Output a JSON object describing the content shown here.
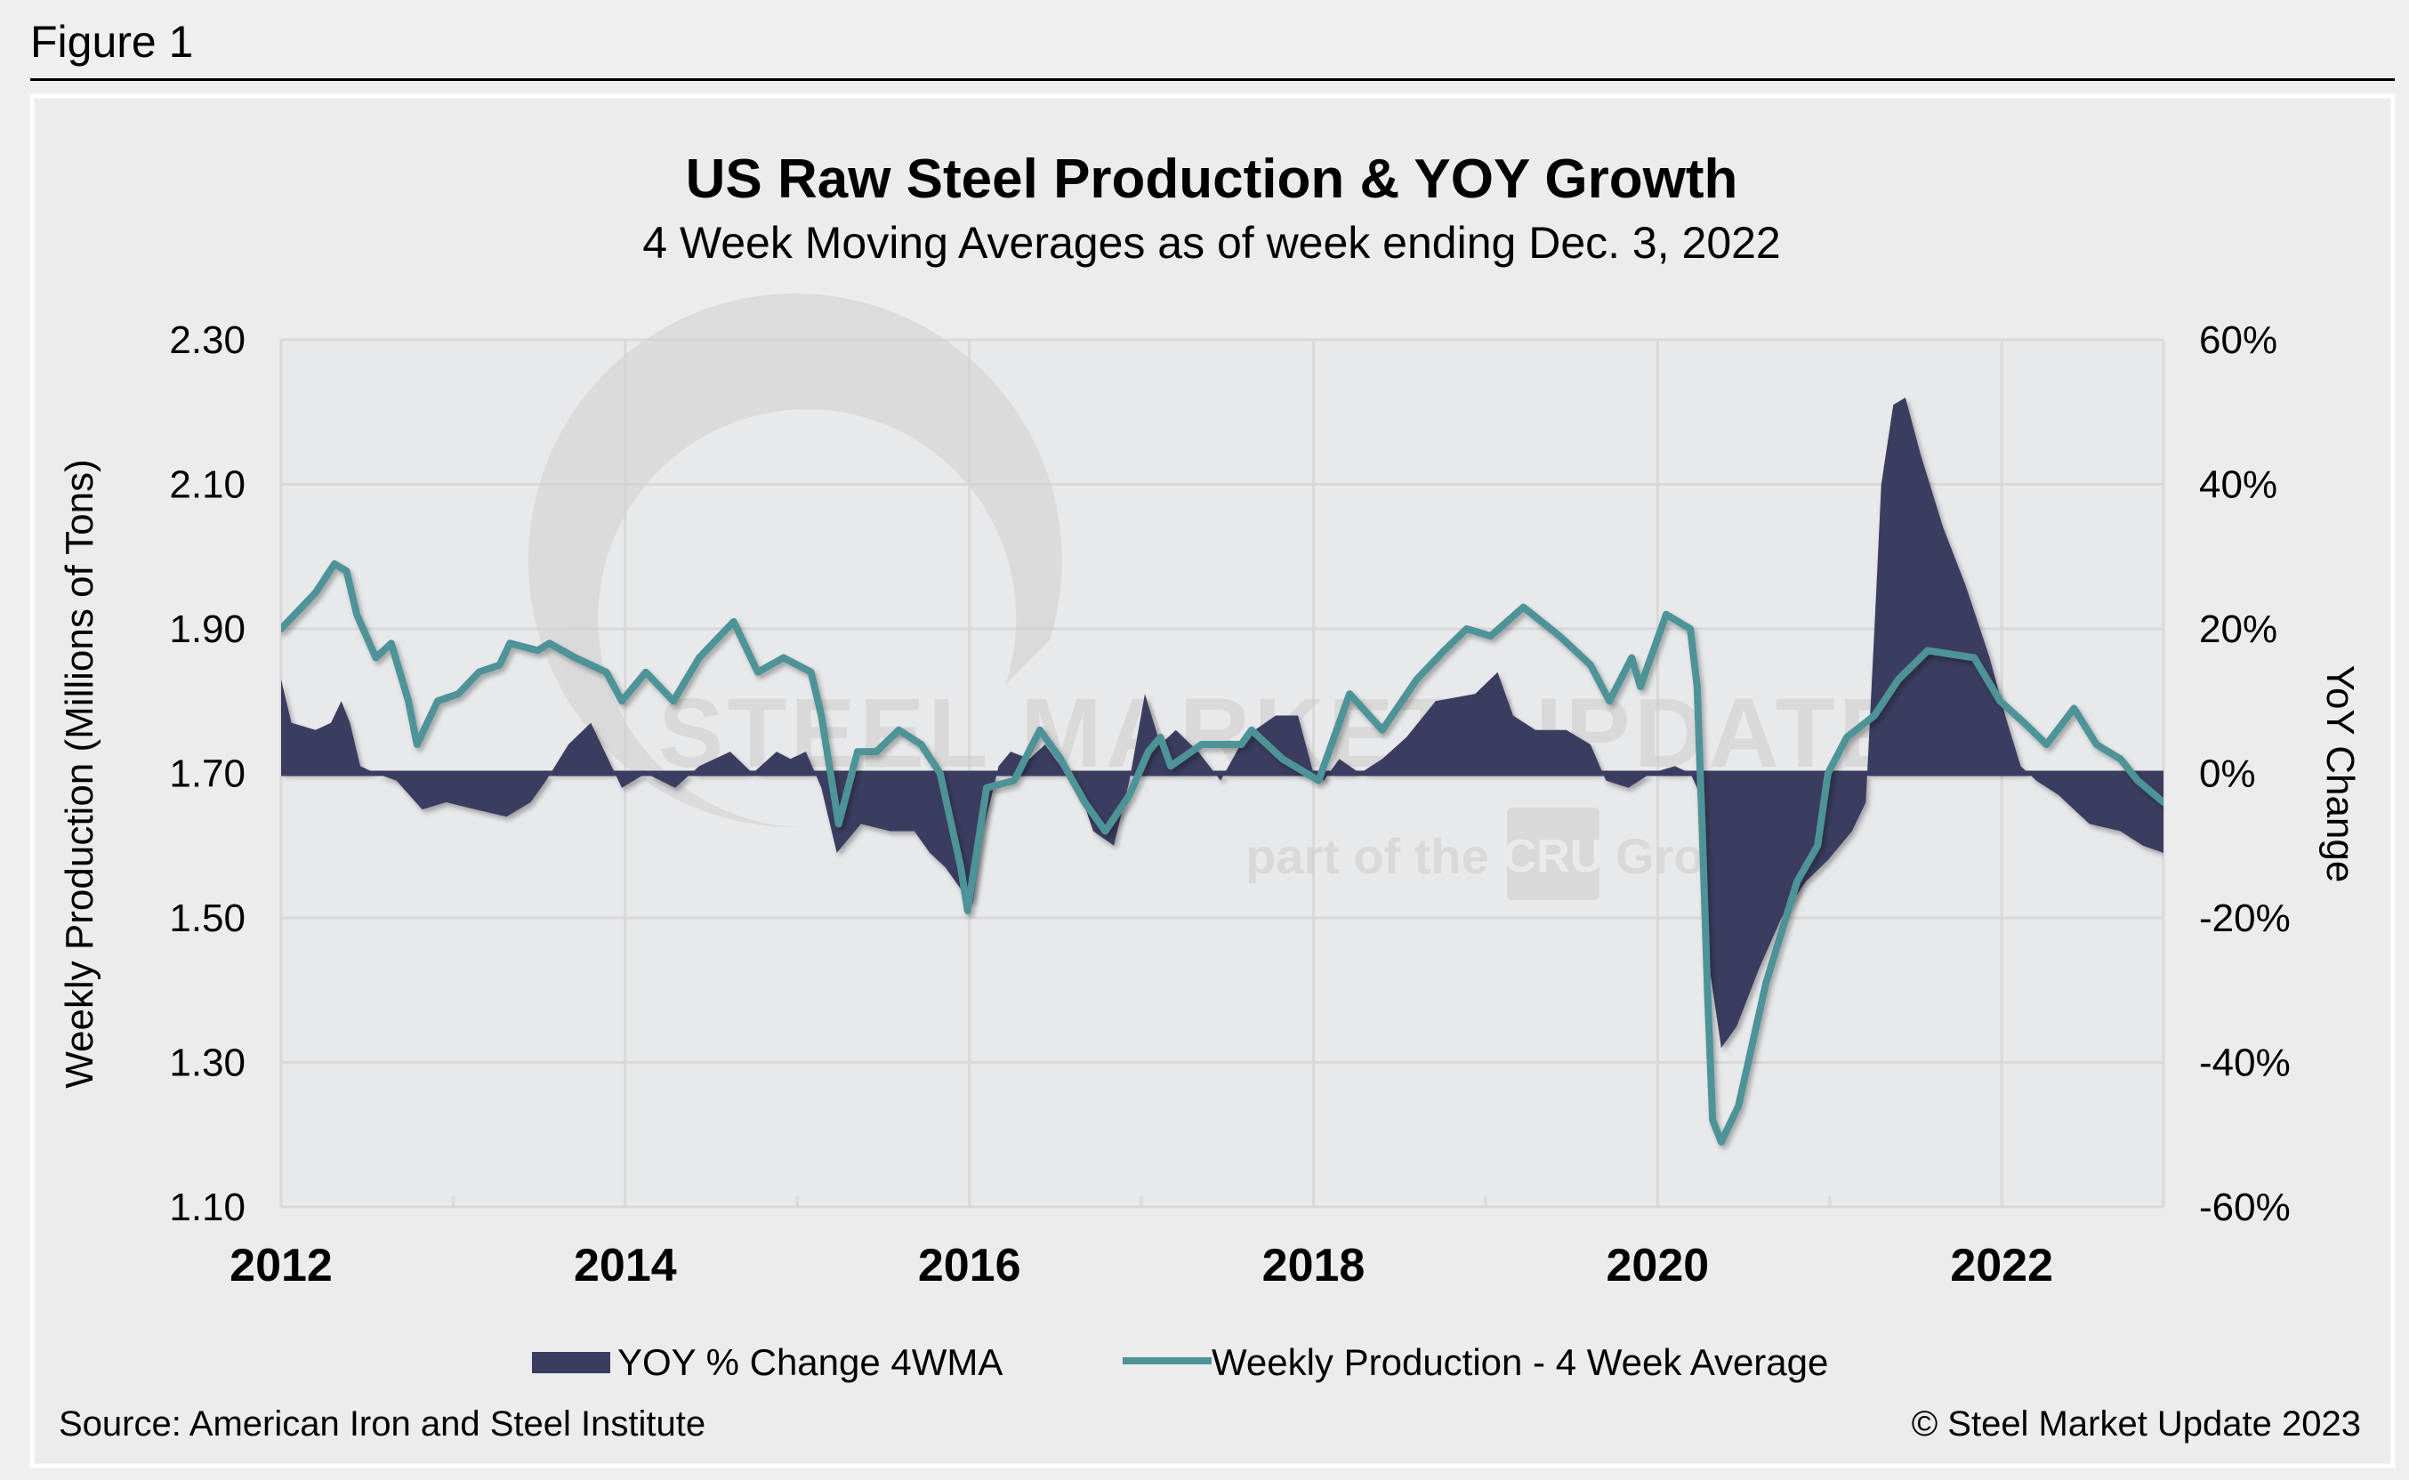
{
  "figure_label": "Figure 1",
  "source": "Source: American Iron and Steel Institute",
  "copyright": "© Steel Market Update 2023",
  "watermark": {
    "brand": "STEEL MARKET UPDATE",
    "tagline_pre": "part of the",
    "tagline_logo": "CRU",
    "tagline_post": "Group"
  },
  "colors": {
    "area": "#3b3d60",
    "line": "#4e9398",
    "grid": "#d9d9d9",
    "plot_bg": "#e8e9eb",
    "panel_bg": "#ececec"
  },
  "chart_data": {
    "type": "area+line",
    "title": "US Raw Steel Production & YOY Growth",
    "subtitle": "4 Week Moving Averages as of week ending Dec. 3, 2022",
    "ylabel_left": "Weekly Production (Millions of Tons)",
    "ylabel_right": "YoY Change",
    "xlim": [
      2012,
      2022.94
    ],
    "ylim_left": [
      1.1,
      2.3
    ],
    "ylim_right": [
      -60,
      60
    ],
    "grid": true,
    "legend_position": "bottom",
    "xticks": [
      2012,
      2014,
      2016,
      2018,
      2020,
      2022
    ],
    "xtick_labels": [
      "2012",
      "2014",
      "2016",
      "2018",
      "2020",
      "2022"
    ],
    "yticks_left": [
      2.3,
      2.1,
      1.9,
      1.7,
      1.5,
      1.3,
      1.1
    ],
    "ytick_labels_left": [
      "2.30",
      "2.10",
      "1.90",
      "1.70",
      "1.50",
      "1.30",
      "1.10"
    ],
    "yticks_right": [
      60,
      40,
      20,
      0,
      -20,
      -40,
      -60
    ],
    "ytick_labels_right": [
      "60%",
      "40%",
      "20%",
      "0%",
      "-20%",
      "-40%",
      "-60%"
    ],
    "series": [
      {
        "name": "YOY % Change 4WMA",
        "type": "area",
        "axis": "right",
        "x": [
          2012.0,
          2012.06,
          2012.2,
          2012.29,
          2012.35,
          2012.4,
          2012.46,
          2012.55,
          2012.67,
          2012.82,
          2012.96,
          2013.13,
          2013.31,
          2013.45,
          2013.54,
          2013.67,
          2013.8,
          2013.92,
          2013.98,
          2014.12,
          2014.29,
          2014.43,
          2014.61,
          2014.74,
          2014.88,
          2014.96,
          2015.05,
          2015.14,
          2015.23,
          2015.37,
          2015.54,
          2015.68,
          2015.77,
          2015.86,
          2015.95,
          2016.02,
          2016.08,
          2016.17,
          2016.24,
          2016.35,
          2016.44,
          2016.53,
          2016.62,
          2016.72,
          2016.84,
          2016.93,
          2017.02,
          2017.11,
          2017.2,
          2017.33,
          2017.46,
          2017.6,
          2017.78,
          2017.91,
          2018.0,
          2018.06,
          2018.15,
          2018.27,
          2018.4,
          2018.54,
          2018.71,
          2018.94,
          2019.07,
          2019.16,
          2019.29,
          2019.47,
          2019.61,
          2019.7,
          2019.83,
          2019.96,
          2020.1,
          2020.19,
          2020.23,
          2020.29,
          2020.37,
          2020.46,
          2020.59,
          2020.72,
          2020.86,
          2020.99,
          2021.13,
          2021.21,
          2021.26,
          2021.3,
          2021.37,
          2021.44,
          2021.53,
          2021.66,
          2021.79,
          2021.93,
          2022.02,
          2022.11,
          2022.2,
          2022.33,
          2022.51,
          2022.69,
          2022.82,
          2022.94
        ],
        "values": [
          13,
          7,
          6,
          7,
          10,
          7,
          1,
          0,
          -1,
          -5,
          -4,
          -5,
          -6,
          -4,
          -1,
          4,
          7,
          1,
          -2,
          0,
          -2,
          1,
          3,
          0,
          3,
          2,
          3,
          -2,
          -11,
          -7,
          -8,
          -8,
          -11,
          -13,
          -16,
          -18,
          -8,
          1,
          3,
          2,
          4,
          1,
          -1,
          -8,
          -10,
          -1,
          11,
          4,
          6,
          3,
          -1,
          5,
          8,
          8,
          0,
          -1,
          2,
          0,
          2,
          5,
          10,
          11,
          14,
          8,
          6,
          6,
          4,
          -1,
          -2,
          0,
          1,
          0,
          -2,
          -25,
          -38,
          -35,
          -27,
          -20,
          -15,
          -12,
          -8,
          -4,
          20,
          40,
          51,
          52,
          44,
          34,
          26,
          16,
          8,
          1,
          -1,
          -3,
          -7,
          -8,
          -10,
          -11
        ]
      },
      {
        "name": "Weekly Production - 4 Week Average",
        "type": "line",
        "axis": "left",
        "x": [
          2012.0,
          2012.2,
          2012.31,
          2012.38,
          2012.44,
          2012.55,
          2012.64,
          2012.74,
          2012.79,
          2012.91,
          2013.03,
          2013.15,
          2013.27,
          2013.33,
          2013.49,
          2013.56,
          2013.71,
          2013.89,
          2013.98,
          2014.12,
          2014.28,
          2014.43,
          2014.63,
          2014.77,
          2014.92,
          2015.08,
          2015.14,
          2015.24,
          2015.35,
          2015.46,
          2015.59,
          2015.72,
          2015.83,
          2015.95,
          2015.99,
          2016.1,
          2016.26,
          2016.41,
          2016.53,
          2016.67,
          2016.79,
          2016.93,
          2017.04,
          2017.11,
          2017.17,
          2017.35,
          2017.58,
          2017.64,
          2017.82,
          2018.03,
          2018.15,
          2018.21,
          2018.4,
          2018.6,
          2018.76,
          2018.89,
          2019.03,
          2019.22,
          2019.43,
          2019.61,
          2019.72,
          2019.85,
          2019.9,
          2020.05,
          2020.19,
          2020.23,
          2020.26,
          2020.29,
          2020.32,
          2020.37,
          2020.47,
          2020.63,
          2020.81,
          2020.93,
          2020.99,
          2021.1,
          2021.26,
          2021.4,
          2021.57,
          2021.84,
          2021.99,
          2022.13,
          2022.26,
          2022.42,
          2022.55,
          2022.69,
          2022.79,
          2022.94
        ],
        "values": [
          1.9,
          1.95,
          1.99,
          1.98,
          1.92,
          1.86,
          1.88,
          1.8,
          1.74,
          1.8,
          1.81,
          1.84,
          1.85,
          1.88,
          1.87,
          1.88,
          1.86,
          1.84,
          1.8,
          1.84,
          1.8,
          1.86,
          1.91,
          1.84,
          1.86,
          1.84,
          1.78,
          1.63,
          1.73,
          1.73,
          1.76,
          1.74,
          1.7,
          1.57,
          1.51,
          1.68,
          1.69,
          1.76,
          1.72,
          1.66,
          1.62,
          1.67,
          1.73,
          1.75,
          1.71,
          1.74,
          1.74,
          1.76,
          1.72,
          1.69,
          1.77,
          1.81,
          1.76,
          1.83,
          1.87,
          1.9,
          1.89,
          1.93,
          1.89,
          1.85,
          1.8,
          1.86,
          1.82,
          1.92,
          1.9,
          1.82,
          1.62,
          1.4,
          1.22,
          1.19,
          1.24,
          1.41,
          1.55,
          1.6,
          1.7,
          1.75,
          1.78,
          1.83,
          1.87,
          1.86,
          1.8,
          1.77,
          1.74,
          1.79,
          1.74,
          1.72,
          1.69,
          1.66
        ]
      }
    ]
  }
}
